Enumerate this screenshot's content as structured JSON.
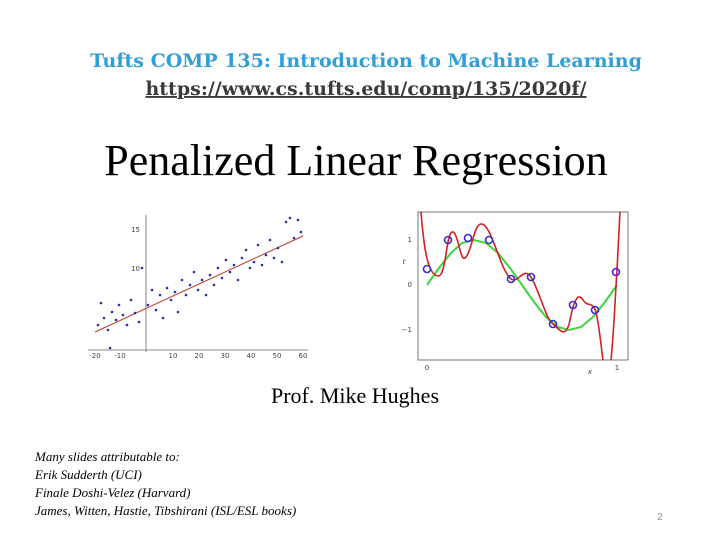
{
  "header": {
    "course": "Tufts COMP 135: Introduction to Machine Learning",
    "url": "https://www.cs.tufts.edu/comp/135/2020f/"
  },
  "title": "Penalized Linear Regression",
  "author": "Prof. Mike Hughes",
  "credits": {
    "heading": "Many slides attributable to:",
    "lines": [
      "Erik Sudderth (UCI)",
      "Finale Doshi-Velez (Harvard)",
      "James, Witten, Hastie, Tibshirani (ISL/ESL books)"
    ]
  },
  "page_number": "2",
  "figures": {
    "scatter": {
      "yticks": [
        "15",
        "10"
      ],
      "xticks": [
        "-20",
        "-10",
        "10",
        "20",
        "30",
        "40",
        "50",
        "60"
      ]
    },
    "curve_fit": {
      "y_label": "t",
      "yticks": [
        "1",
        "0",
        "−1"
      ],
      "x_label": "x",
      "xticks": [
        "0",
        "1"
      ]
    }
  }
}
